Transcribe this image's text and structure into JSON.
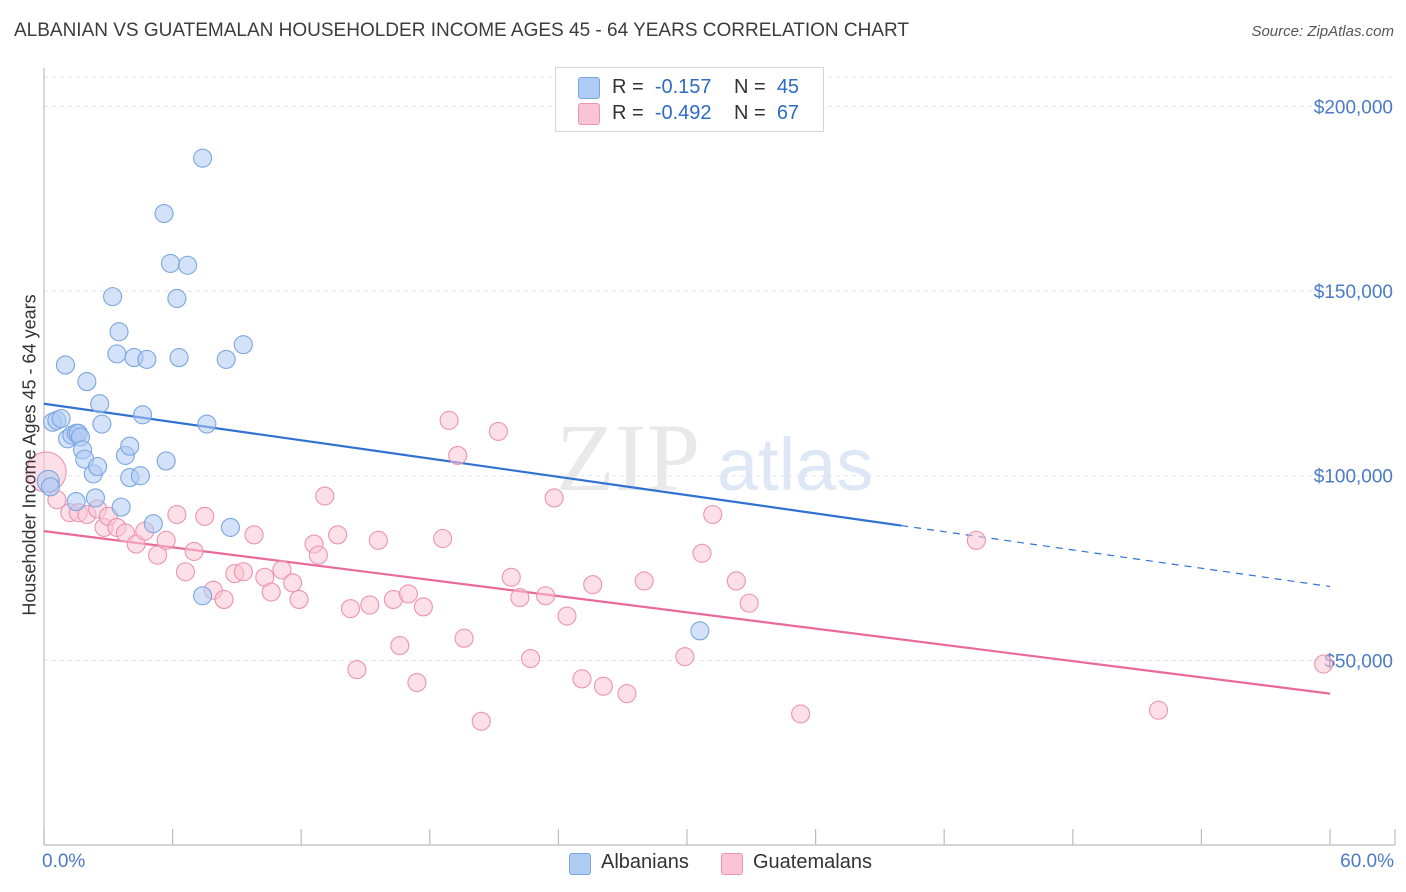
{
  "title": "ALBANIAN VS GUATEMALAN HOUSEHOLDER INCOME AGES 45 - 64 YEARS CORRELATION CHART",
  "source": "Source: ZipAtlas.com",
  "watermark": {
    "zip": "ZIP",
    "atlas": "atlas"
  },
  "legend": {
    "rows": [
      {
        "r_label": "R =",
        "r_value": "-0.157",
        "n_label": "N =",
        "n_value": "45",
        "color": "#aecbf2",
        "border": "#7aa6e0"
      },
      {
        "r_label": "R =",
        "r_value": "-0.492",
        "n_label": "N =",
        "n_value": "67",
        "color": "#f9c4d4",
        "border": "#ec94b0"
      }
    ]
  },
  "bottom_legend": [
    {
      "label": "Albanians",
      "color": "#aecbf2",
      "border": "#7aa6e0"
    },
    {
      "label": "Guatemalans",
      "color": "#f9c4d4",
      "border": "#ec94b0"
    }
  ],
  "chart_data": {
    "type": "scatter",
    "title": "ALBANIAN VS GUATEMALAN HOUSEHOLDER INCOME AGES 45 - 64 YEARS CORRELATION CHART",
    "xlabel": "",
    "ylabel": "Householder Income Ages 45 - 64 years",
    "x_tick_labels": [
      "0.0%",
      "60.0%"
    ],
    "y_tick_labels": [
      "$50,000",
      "$100,000",
      "$150,000",
      "$200,000"
    ],
    "y_ticks": [
      50000,
      100000,
      150000,
      200000
    ],
    "xlim": [
      0,
      60
    ],
    "ylim": [
      0,
      205000
    ],
    "grid": true,
    "legend_position": "top-center",
    "colors": {
      "albanians": "#2f72d2",
      "guatemalans": "#e8699a",
      "axis_text": "#4a7bc8"
    },
    "series": [
      {
        "name": "Albanians",
        "points": [
          [
            0.2,
            98500
          ],
          [
            0.3,
            97000
          ],
          [
            0.4,
            114500
          ],
          [
            0.6,
            115000
          ],
          [
            0.8,
            115500
          ],
          [
            1.0,
            130000
          ],
          [
            1.1,
            110000
          ],
          [
            1.3,
            111000
          ],
          [
            1.5,
            111500
          ],
          [
            1.6,
            111500
          ],
          [
            1.7,
            110500
          ],
          [
            1.8,
            107000
          ],
          [
            1.9,
            104500
          ],
          [
            2.0,
            125500
          ],
          [
            2.3,
            100500
          ],
          [
            2.4,
            94000
          ],
          [
            2.5,
            102500
          ],
          [
            2.6,
            119500
          ],
          [
            2.7,
            114000
          ],
          [
            3.2,
            148500
          ],
          [
            3.4,
            133000
          ],
          [
            3.5,
            139000
          ],
          [
            3.6,
            91500
          ],
          [
            3.8,
            105500
          ],
          [
            4.0,
            99500
          ],
          [
            4.0,
            108000
          ],
          [
            4.2,
            132000
          ],
          [
            4.5,
            100000
          ],
          [
            4.6,
            116500
          ],
          [
            4.8,
            131500
          ],
          [
            5.1,
            87000
          ],
          [
            5.6,
            171000
          ],
          [
            5.7,
            104000
          ],
          [
            5.9,
            157500
          ],
          [
            6.2,
            148000
          ],
          [
            6.3,
            132000
          ],
          [
            6.7,
            157000
          ],
          [
            7.4,
            186000
          ],
          [
            7.4,
            67500
          ],
          [
            7.6,
            114000
          ],
          [
            8.5,
            131500
          ],
          [
            8.7,
            86000
          ],
          [
            9.3,
            135500
          ],
          [
            30.6,
            58000
          ],
          [
            1.5,
            93000
          ]
        ],
        "trend": {
          "x_start": 0,
          "y_start": 119500,
          "x_solid_end": 40,
          "y_solid_end": 86500,
          "x_end": 60,
          "y_end": 70000
        }
      },
      {
        "name": "Guatemalans",
        "points": [
          [
            0.1,
            101000
          ],
          [
            0.6,
            93500
          ],
          [
            1.2,
            90000
          ],
          [
            1.6,
            90000
          ],
          [
            2.0,
            89500
          ],
          [
            2.5,
            91000
          ],
          [
            2.8,
            86000
          ],
          [
            3.0,
            89000
          ],
          [
            3.4,
            86000
          ],
          [
            3.8,
            84500
          ],
          [
            4.3,
            81500
          ],
          [
            4.7,
            85000
          ],
          [
            5.3,
            78500
          ],
          [
            5.7,
            82500
          ],
          [
            6.2,
            89500
          ],
          [
            6.6,
            74000
          ],
          [
            7.0,
            79500
          ],
          [
            7.5,
            89000
          ],
          [
            7.9,
            69000
          ],
          [
            8.4,
            66500
          ],
          [
            8.9,
            73500
          ],
          [
            9.3,
            74000
          ],
          [
            9.8,
            84000
          ],
          [
            10.3,
            72500
          ],
          [
            10.6,
            68500
          ],
          [
            11.1,
            74500
          ],
          [
            11.6,
            71000
          ],
          [
            11.9,
            66500
          ],
          [
            12.6,
            81500
          ],
          [
            12.8,
            78500
          ],
          [
            13.1,
            94500
          ],
          [
            13.7,
            84000
          ],
          [
            14.3,
            64000
          ],
          [
            14.6,
            47500
          ],
          [
            15.2,
            65000
          ],
          [
            15.6,
            82500
          ],
          [
            16.3,
            66500
          ],
          [
            16.6,
            54000
          ],
          [
            17.0,
            68000
          ],
          [
            17.4,
            44000
          ],
          [
            17.7,
            64500
          ],
          [
            18.6,
            83000
          ],
          [
            18.9,
            115000
          ],
          [
            19.3,
            105500
          ],
          [
            19.6,
            56000
          ],
          [
            20.4,
            33500
          ],
          [
            21.2,
            112000
          ],
          [
            21.8,
            72500
          ],
          [
            22.2,
            67000
          ],
          [
            22.7,
            50500
          ],
          [
            23.4,
            67500
          ],
          [
            23.8,
            94000
          ],
          [
            24.4,
            62000
          ],
          [
            25.1,
            45000
          ],
          [
            25.6,
            70500
          ],
          [
            26.1,
            43000
          ],
          [
            27.2,
            41000
          ],
          [
            28.0,
            71500
          ],
          [
            29.9,
            51000
          ],
          [
            30.7,
            79000
          ],
          [
            31.2,
            89500
          ],
          [
            32.3,
            71500
          ],
          [
            32.9,
            65500
          ],
          [
            35.3,
            35500
          ],
          [
            43.5,
            82500
          ],
          [
            52.0,
            36500
          ],
          [
            59.7,
            49000
          ]
        ],
        "trend": {
          "x_start": 0,
          "y_start": 85000,
          "x_end": 60,
          "y_end": 41000
        }
      }
    ]
  }
}
